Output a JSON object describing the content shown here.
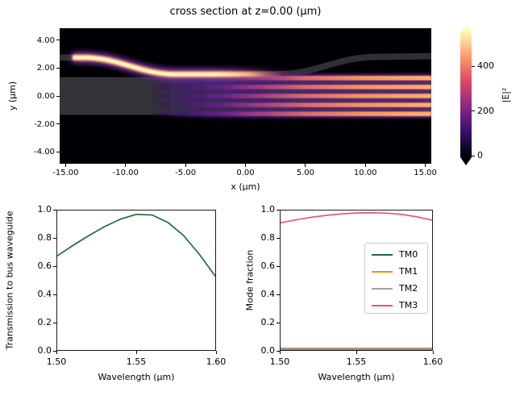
{
  "figure": {
    "background": "#ffffff",
    "accent_colors": {
      "tm0_green": "#1c6b3c",
      "tm1_orange": "#ff8c00",
      "tm2_gray": "#9aa0ac",
      "tm3_pink": "#ec536f"
    }
  },
  "chart_data": [
    {
      "type": "heatmap",
      "title": "cross section at z=0.00 (μm)",
      "xlabel": "x (μm)",
      "ylabel": "y (μm)",
      "xlim": [
        -15.5,
        15.5
      ],
      "ylim": [
        -4.85,
        4.85
      ],
      "x_ticks": [
        -15,
        -10,
        -5,
        0,
        5,
        10,
        15
      ],
      "x_tick_labels": [
        "-15.00",
        "-10.00",
        "-5.00",
        "0.00",
        "5.00",
        "10.00",
        "15.00"
      ],
      "y_ticks": [
        4,
        2,
        0,
        -2,
        -4
      ],
      "y_tick_labels": [
        "4.00",
        "2.00",
        "0.00",
        "-2.00",
        "-4.00"
      ],
      "colorbar": {
        "label": "|E|²",
        "ticks": [
          0,
          200,
          400
        ],
        "tick_labels": [
          "0",
          "200",
          "400"
        ],
        "vmin": 0,
        "vmax": 560,
        "colormap": "magma",
        "extend": "both"
      },
      "structures": {
        "wide_waveguide_y_extent": [
          -1.35,
          1.35
        ],
        "bus_waveguide_width": 0.45,
        "bus_centerline_points": [
          [
            -15.5,
            2.75
          ],
          [
            -13.5,
            2.75
          ],
          [
            -5.8,
            1.55
          ],
          [
            2.5,
            1.55
          ],
          [
            11.0,
            2.8
          ],
          [
            15.5,
            2.85
          ]
        ],
        "bright_field_x_extent": [
          -14.45,
          3.5
        ],
        "mode_lobe_y_centers": [
          1.28,
          0.64,
          0.0,
          -0.64,
          -1.28
        ],
        "mode_lobes_x_onset": -7.0
      }
    },
    {
      "type": "line",
      "title": "",
      "xlabel": "Wavelength (μm)",
      "ylabel": "Transmission to bus waveguide",
      "xlim": [
        1.5,
        1.6
      ],
      "ylim": [
        0.0,
        1.0
      ],
      "x_ticks": [
        1.5,
        1.55,
        1.6
      ],
      "x_tick_labels": [
        "1.50",
        "1.55",
        "1.60"
      ],
      "y_ticks": [
        0.0,
        0.2,
        0.4,
        0.6,
        0.8,
        1.0
      ],
      "y_tick_labels": [
        "0.0",
        "0.2",
        "0.4",
        "0.6",
        "0.8",
        "1.0"
      ],
      "x": [
        1.5,
        1.51,
        1.52,
        1.53,
        1.54,
        1.55,
        1.56,
        1.57,
        1.58,
        1.59,
        1.6
      ],
      "series": [
        {
          "name": "transmission",
          "color": "#1c6b3c",
          "values": [
            0.675,
            0.75,
            0.82,
            0.885,
            0.938,
            0.972,
            0.968,
            0.915,
            0.82,
            0.685,
            0.53
          ]
        }
      ],
      "grid": false,
      "legend": false
    },
    {
      "type": "line",
      "title": "",
      "xlabel": "Wavelength (μm)",
      "ylabel": "Mode fraction",
      "xlim": [
        1.5,
        1.6
      ],
      "ylim": [
        0.0,
        1.0
      ],
      "x_ticks": [
        1.5,
        1.55,
        1.6
      ],
      "x_tick_labels": [
        "1.50",
        "1.55",
        "1.60"
      ],
      "y_ticks": [
        0.0,
        0.2,
        0.4,
        0.6,
        0.8,
        1.0
      ],
      "y_tick_labels": [
        "0.0",
        "0.2",
        "0.4",
        "0.6",
        "0.8",
        "1.0"
      ],
      "x": [
        1.5,
        1.51,
        1.52,
        1.53,
        1.54,
        1.55,
        1.56,
        1.57,
        1.58,
        1.59,
        1.6
      ],
      "series": [
        {
          "name": "TM0",
          "color": "#1c6b3c",
          "values": [
            0.004,
            0.004,
            0.004,
            0.004,
            0.004,
            0.004,
            0.004,
            0.004,
            0.004,
            0.004,
            0.004
          ]
        },
        {
          "name": "TM1",
          "color": "#ff8c00",
          "values": [
            0.007,
            0.007,
            0.007,
            0.007,
            0.007,
            0.007,
            0.007,
            0.007,
            0.007,
            0.007,
            0.007
          ]
        },
        {
          "name": "TM2",
          "color": "#9aa0ac",
          "values": [
            0.013,
            0.013,
            0.013,
            0.013,
            0.013,
            0.013,
            0.013,
            0.013,
            0.013,
            0.013,
            0.013
          ]
        },
        {
          "name": "TM3",
          "color": "#ec536f",
          "values": [
            0.912,
            0.933,
            0.951,
            0.965,
            0.976,
            0.982,
            0.984,
            0.981,
            0.972,
            0.955,
            0.931
          ]
        }
      ],
      "grid": false,
      "legend": true,
      "legend_entries": [
        "TM0",
        "TM1",
        "TM2",
        "TM3"
      ]
    }
  ]
}
